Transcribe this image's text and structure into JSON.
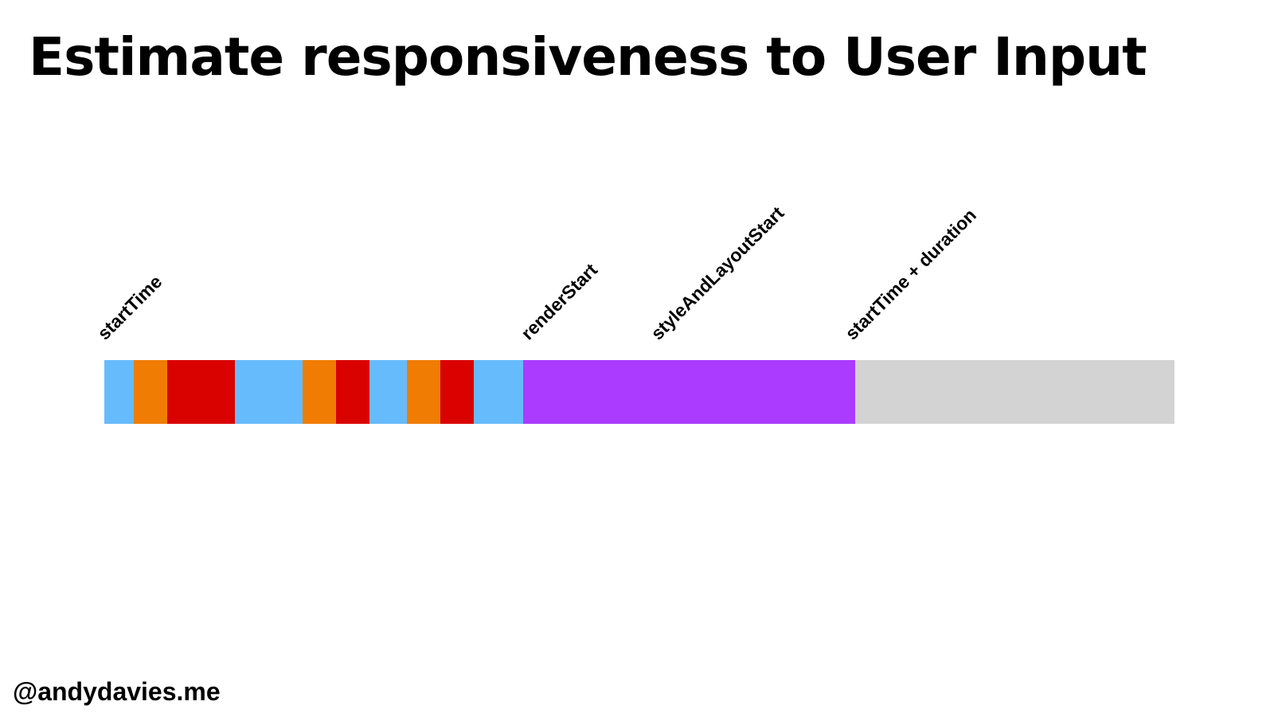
{
  "title": "Estimate responsiveness to User Input",
  "footer": "@andydavies.me",
  "colors": {
    "script": "#66bbfc",
    "orange": "#f07c03",
    "red": "#d90201",
    "render": "#aa3bff",
    "remainder": "#d3d3d3"
  },
  "markers": [
    {
      "label": "startTime"
    },
    {
      "label": "renderStart"
    },
    {
      "label": "styleAndLayoutStart"
    },
    {
      "label": "startTime + duration"
    }
  ],
  "segments": [
    {
      "color": "script"
    },
    {
      "color": "orange"
    },
    {
      "color": "red"
    },
    {
      "color": "script"
    },
    {
      "color": "orange"
    },
    {
      "color": "red"
    },
    {
      "color": "script"
    },
    {
      "color": "orange"
    },
    {
      "color": "red"
    },
    {
      "color": "script"
    },
    {
      "color": "render"
    },
    {
      "color": "remainder"
    }
  ]
}
